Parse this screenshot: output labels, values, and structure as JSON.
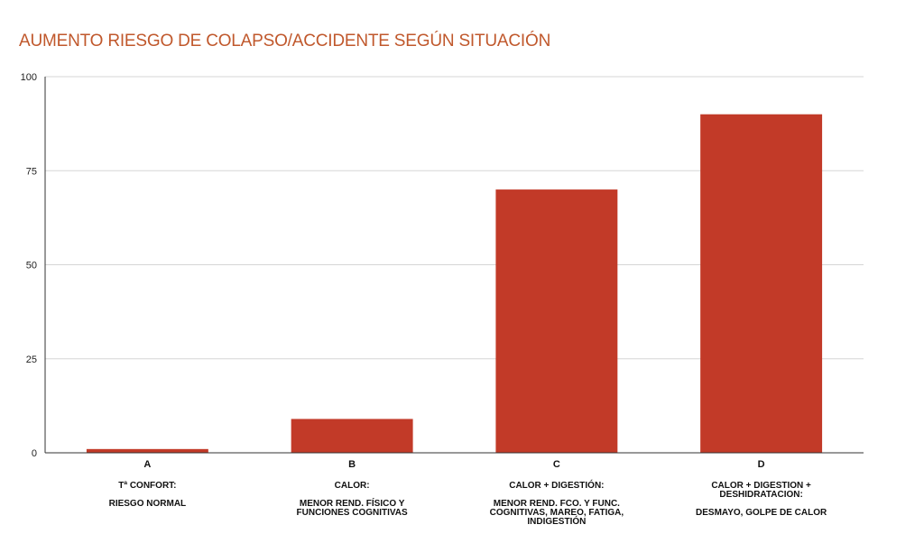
{
  "chart_data": {
    "type": "bar",
    "title": "AUMENTO RIESGO DE COLAPSO/ACCIDENTE SEGÚN SITUACIÓN",
    "categories": [
      "A",
      "B",
      "C",
      "D"
    ],
    "category_descriptions": [
      [
        "Tª CONFORT:",
        "",
        "RIESGO NORMAL"
      ],
      [
        "CALOR:",
        "",
        "MENOR REND. FÍSICO Y",
        "FUNCIONES COGNITIVAS"
      ],
      [
        "CALOR + DIGESTIÓN:",
        "",
        "MENOR REND. FCO. Y FUNC.",
        "COGNITIVAS, MAREO, FATIGA,",
        "INDIGESTIÓN"
      ],
      [
        "CALOR + DIGESTION +",
        "DESHIDRATACION:",
        "",
        "DESMAYO, GOLPE DE CALOR"
      ]
    ],
    "values": [
      1,
      9,
      70,
      90
    ],
    "ylim": [
      0,
      100
    ],
    "yticks": [
      0,
      25,
      50,
      75,
      100
    ],
    "grid": true,
    "bar_color": "#c23a28",
    "title_color": "#c0582c",
    "xlabel": "",
    "ylabel": ""
  }
}
